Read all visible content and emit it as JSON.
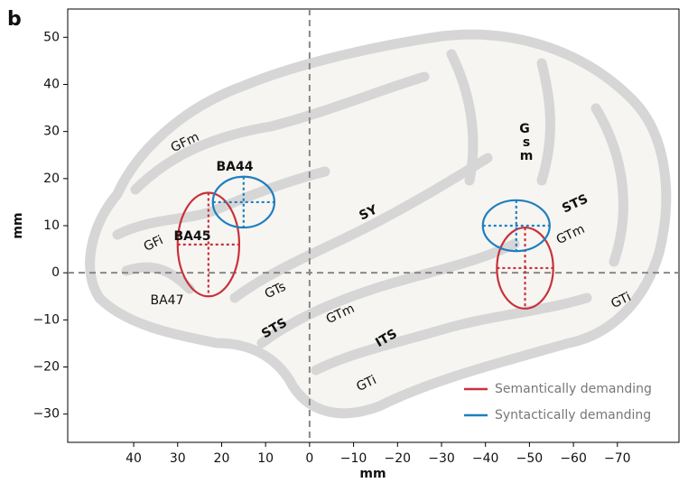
{
  "chart_data": {
    "type": "ellipse",
    "panel_label": "b",
    "xlabel": "mm",
    "ylabel": "mm",
    "xlim": [
      55,
      -84
    ],
    "ylim": [
      -36,
      56
    ],
    "xticks": [
      40,
      30,
      20,
      10,
      0,
      {
        "value": -10,
        "label": "−10"
      },
      {
        "value": -20,
        "label": "−20"
      },
      {
        "value": -30,
        "label": "−30"
      },
      {
        "value": -40,
        "label": "−40"
      },
      {
        "value": -50,
        "label": "−50"
      },
      {
        "value": -60,
        "label": "−60"
      },
      {
        "value": -70,
        "label": "−70"
      }
    ],
    "yticks": [
      {
        "value": -30,
        "label": "−30"
      },
      {
        "value": -20,
        "label": "−20"
      },
      {
        "value": -10,
        "label": "−10"
      },
      0,
      10,
      20,
      30,
      40,
      50
    ],
    "series": [
      {
        "name": "Semantically demanding",
        "color": "#c8323a",
        "x": [
          23,
          -49
        ],
        "y": [
          6,
          1
        ],
        "x_halfwidth": [
          7,
          6.4
        ],
        "y_halfwidth": [
          11,
          8.6
        ]
      },
      {
        "name": "Syntactically demanding",
        "color": "#1f7fc0",
        "x": [
          15,
          -47
        ],
        "y": [
          15,
          10
        ],
        "x_halfwidth": [
          7,
          7.6
        ],
        "y_halfwidth": [
          5.4,
          5.4
        ]
      }
    ],
    "legend": "lower right",
    "annotations": [
      "GFm",
      "BA44",
      "SY",
      "G",
      "s",
      "m",
      "STS",
      "GTm",
      "GFi",
      "BA45",
      "BA47",
      "GTs",
      "STS",
      "GTm",
      "ITS",
      "GTi",
      "GTi"
    ]
  }
}
